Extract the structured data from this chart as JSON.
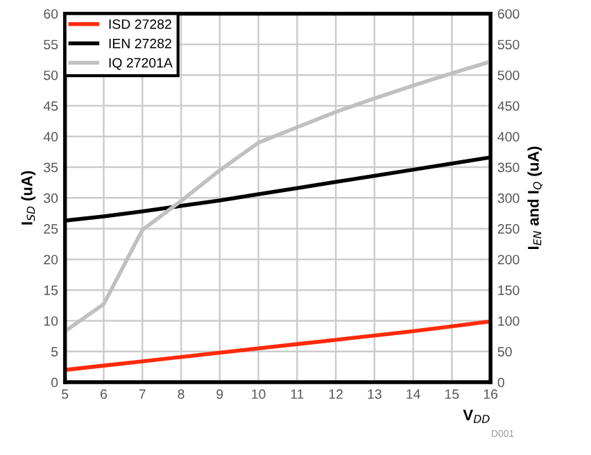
{
  "chart_data": {
    "type": "line",
    "xlabel": "V$_{DD}$",
    "ylabel": "I$_{SD}$ (uA)",
    "y2label": "I$_{EN}$ and I$_{Q}$ (uA)",
    "annotations": [
      "D001"
    ],
    "x": [
      5,
      6,
      7,
      8,
      9,
      10,
      11,
      12,
      13,
      14,
      15,
      16
    ],
    "series": [
      {
        "name": "ISD 27282",
        "color": "#ff2a0a",
        "values": [
          2.0,
          2.7,
          3.4,
          4.1,
          4.8,
          5.5,
          6.2,
          6.9,
          7.6,
          8.3,
          9.1,
          9.9
        ]
      },
      {
        "name": "IEN 27282",
        "color": "#000000",
        "axis": "y2",
        "values": [
          263,
          270,
          278,
          287,
          296,
          306,
          316,
          326,
          336,
          346,
          356,
          366
        ]
      },
      {
        "name": "IQ 27201A",
        "color": "#c0c0c0",
        "axis": "y2",
        "values": [
          83,
          127,
          248,
          295,
          345,
          390,
          415,
          440,
          462,
          483,
          503,
          522
        ]
      }
    ],
    "xlim": [
      5,
      16
    ],
    "xticks": [
      5,
      6,
      7,
      8,
      9,
      10,
      11,
      12,
      13,
      14,
      15,
      16
    ],
    "ylim": [
      0,
      60
    ],
    "yticks": [
      0,
      5,
      10,
      15,
      20,
      25,
      30,
      35,
      40,
      45,
      50,
      55,
      60
    ],
    "y2lim": [
      0,
      600
    ],
    "y2ticks": [
      0,
      50,
      100,
      150,
      200,
      250,
      300,
      350,
      400,
      450,
      500,
      550,
      600
    ],
    "grid": true,
    "legend": "top left",
    "marker": "none",
    "line_style": "solid"
  }
}
